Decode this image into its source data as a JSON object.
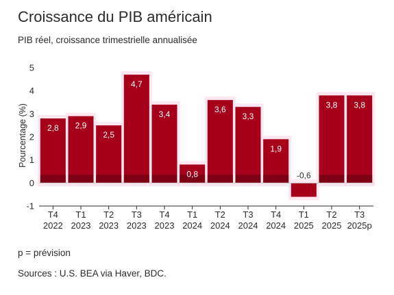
{
  "title": "Croissance du PIB américain",
  "subtitle": "PIB réel, croissance trimestrielle annualisée",
  "note": "p = prévision",
  "source": "Sources : U.S. BEA via Haver, BDC.",
  "colors": {
    "bar": "#a6001a",
    "bar_dark": "#7e0014",
    "halo": "#fde4ef",
    "axis": "#2b2b2b"
  },
  "chart_data": {
    "type": "bar",
    "ylabel": "Pourcentage (%)",
    "ylim": [
      -1,
      5
    ],
    "yticks": [
      -1,
      0,
      1,
      2,
      3,
      4,
      5
    ],
    "categories": [
      [
        "T4",
        "2022"
      ],
      [
        "T1",
        "2023"
      ],
      [
        "T2",
        "2023"
      ],
      [
        "T3",
        "2023"
      ],
      [
        "T4",
        "2023"
      ],
      [
        "T1",
        "2024"
      ],
      [
        "T2",
        "2024"
      ],
      [
        "T3",
        "2024"
      ],
      [
        "T4",
        "2024"
      ],
      [
        "T1",
        "2025"
      ],
      [
        "T2",
        "2025"
      ],
      [
        "T3",
        "2025p"
      ]
    ],
    "values": [
      2.8,
      2.9,
      2.5,
      4.7,
      3.4,
      0.8,
      3.6,
      3.3,
      1.9,
      -0.6,
      3.8,
      3.8
    ],
    "labels": [
      "2,8",
      "2,9",
      "2,5",
      "4,7",
      "3,4",
      "0,8",
      "3,6",
      "3,3",
      "1,9",
      "-0,6",
      "3,8",
      "3,8"
    ]
  }
}
